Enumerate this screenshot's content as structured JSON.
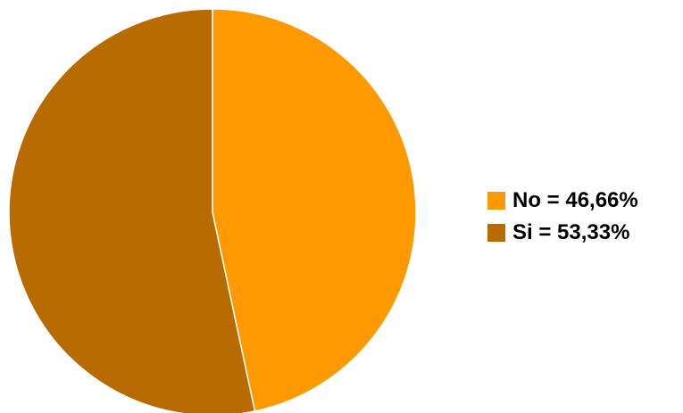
{
  "chart_data": {
    "type": "pie",
    "title": "",
    "slices": [
      {
        "name": "No",
        "value": 46.66,
        "legend_label": "No = 46,66%",
        "color": "#FF9900"
      },
      {
        "name": "Si",
        "value": 53.33,
        "legend_label": "Si = 53,33%",
        "color": "#B86B00"
      }
    ],
    "start": "12 o'clock",
    "direction": "clockwise",
    "legend_position": "right"
  }
}
